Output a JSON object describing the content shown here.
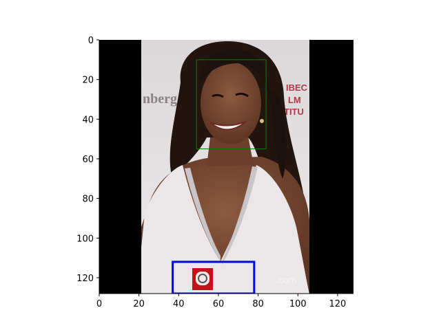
{
  "figure": {
    "axes": {
      "xlim": [
        0,
        128
      ],
      "ylim": [
        128,
        0
      ],
      "y_inverted": true,
      "xticks": [
        0,
        20,
        40,
        60,
        80,
        100,
        120
      ],
      "yticks": [
        0,
        20,
        40,
        60,
        80,
        100,
        120
      ],
      "xtick_labels": [
        "0",
        "20",
        "40",
        "60",
        "80",
        "100",
        "120"
      ],
      "ytick_labels": [
        "0",
        "20",
        "40",
        "60",
        "80",
        "100",
        "120"
      ]
    },
    "image": {
      "content": "photo of a smiling woman with long dark hair in a white v-neck top, black padding on left and right",
      "padding_color": "#000000",
      "photo_x_range": [
        21,
        106
      ],
      "background_colors": {
        "wall": "#e6e2e2",
        "hair": "#2a1a12",
        "skin": "#7a4a34",
        "top": "#e8e4e6"
      },
      "visible_text_fragments": [
        "nberg",
        "IBEC",
        "LM",
        "TITU",
        ".com"
      ],
      "logo": {
        "name": "red-badge-logo",
        "color": "#c8101a"
      }
    },
    "boxes": [
      {
        "name": "face-box",
        "color": "#008000",
        "x0": 49,
        "y0": 10,
        "x1": 84,
        "y1": 55
      },
      {
        "name": "logo-box",
        "color": "#0000ff",
        "x0": 37,
        "y0": 112,
        "x1": 78,
        "y1": 128
      }
    ]
  }
}
